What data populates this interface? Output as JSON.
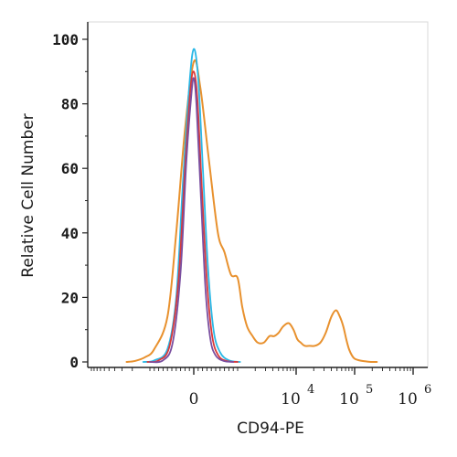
{
  "chart_data": {
    "type": "line",
    "title": "",
    "xlabel": "CD94-PE",
    "ylabel": "Relative Cell Number",
    "xscale": "biexponential",
    "ylim": [
      0,
      100
    ],
    "y_ticks": [
      "0",
      "20",
      "40",
      "60",
      "80",
      "100"
    ],
    "x_ticks": [
      {
        "base": "0",
        "exp": ""
      },
      {
        "base": "10",
        "exp": "4"
      },
      {
        "base": "10",
        "exp": "5"
      },
      {
        "base": "10",
        "exp": "6"
      }
    ],
    "grid": false,
    "legend": "none",
    "series": [
      {
        "color": "#e8912e",
        "x": [
          -2500,
          -1800,
          -1200,
          -900,
          -600,
          -400,
          -200,
          0,
          150,
          350,
          550,
          700,
          850,
          1000,
          1200,
          1450,
          1800,
          2200,
          2800,
          3500,
          4200,
          5000,
          6000,
          7500,
          9000,
          10500,
          12000,
          14000,
          17000,
          21000,
          26000,
          32000,
          40000,
          48000,
          56000,
          64000,
          72000,
          80000,
          90000,
          100000,
          120000,
          150000,
          190000,
          240000
        ],
        "values": [
          0,
          0.3,
          1.5,
          4,
          14,
          40,
          72,
          93,
          85,
          62,
          40,
          34,
          27,
          26,
          17,
          11,
          8,
          6,
          6,
          8,
          8,
          9,
          11,
          12,
          10,
          7,
          6,
          5,
          5,
          5,
          6,
          9,
          14,
          16,
          14,
          11,
          7,
          4,
          2,
          1,
          0.5,
          0.2,
          0,
          0
        ]
      },
      {
        "color": "#2ab8e6",
        "x": [
          -1300,
          -900,
          -600,
          -400,
          -250,
          -100,
          0,
          100,
          200,
          320,
          450,
          600,
          800,
          1100
        ],
        "values": [
          0,
          0.5,
          4,
          20,
          55,
          86,
          97,
          88,
          62,
          30,
          10,
          3,
          0.5,
          0
        ]
      },
      {
        "color": "#d93a3a",
        "x": [
          -1100,
          -800,
          -550,
          -350,
          -200,
          -80,
          0,
          80,
          180,
          300,
          420,
          560,
          750,
          1000
        ],
        "values": [
          0,
          0.5,
          5,
          25,
          60,
          84,
          90,
          82,
          55,
          25,
          8,
          2,
          0.3,
          0
        ]
      },
      {
        "color": "#7a4fa0",
        "x": [
          -1000,
          -700,
          -480,
          -300,
          -170,
          -60,
          0,
          60,
          160,
          270,
          380,
          500,
          680,
          900
        ],
        "values": [
          0,
          0.5,
          6,
          28,
          62,
          82,
          88,
          80,
          52,
          22,
          7,
          2,
          0.3,
          0
        ]
      }
    ]
  }
}
